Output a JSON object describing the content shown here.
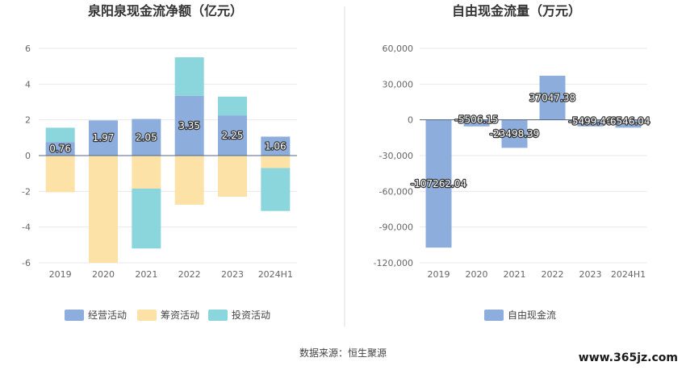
{
  "source_text": "数据来源：恒生聚源",
  "watermark": "www.365jz.com",
  "colors": {
    "operating": "#8daedc",
    "financing": "#fde2a8",
    "investing": "#8ad6dc",
    "free_cash_flow": "#8daedc",
    "grid": "#e8e8e8",
    "divider": "#dddddd"
  },
  "chart_data": [
    {
      "type": "bar",
      "stacked": true,
      "title": "泉阳泉现金流净额（亿元）",
      "categories": [
        "2019",
        "2020",
        "2021",
        "2022",
        "2023",
        "2024H1"
      ],
      "ylim": [
        -6,
        6
      ],
      "yticks": [
        6,
        4,
        2,
        0,
        -2,
        -4,
        -6
      ],
      "ytick_labels": [
        "6",
        "4",
        "2",
        "0",
        "-2",
        "-4",
        "-6"
      ],
      "grid": true,
      "legend_position": "bottom",
      "series": [
        {
          "name": "经营活动",
          "color_key": "operating",
          "values": [
            0.76,
            1.97,
            2.05,
            3.35,
            2.25,
            1.06
          ]
        },
        {
          "name": "筹资活动",
          "color_key": "financing",
          "values": [
            -2.05,
            -6.0,
            -1.85,
            -2.75,
            -2.3,
            -0.7
          ]
        },
        {
          "name": "投资活动",
          "color_key": "investing",
          "values": [
            0.8,
            0.0,
            -3.35,
            2.15,
            1.05,
            -2.4
          ]
        }
      ],
      "data_labels": [
        "0.76",
        "1.97",
        "2.05",
        "3.35",
        "2.25",
        "1.06"
      ]
    },
    {
      "type": "bar",
      "title": "自由现金流量（万元）",
      "categories": [
        "2019",
        "2020",
        "2021",
        "2022",
        "2023",
        "2024H1"
      ],
      "ylim": [
        -120000,
        60000
      ],
      "yticks": [
        60000,
        30000,
        0,
        -30000,
        -60000,
        -90000,
        -120000
      ],
      "ytick_labels": [
        "60,000",
        "30,000",
        "0",
        "-30,000",
        "-60,000",
        "-90,000",
        "-120,000"
      ],
      "grid": true,
      "legend_position": "bottom",
      "series": [
        {
          "name": "自由现金流",
          "color_key": "free_cash_flow",
          "values": [
            -107262.04,
            -5506.15,
            -23498.39,
            37047.38,
            -5499.46,
            -6546.04
          ]
        }
      ],
      "data_labels": [
        "-107262.04",
        "-5506.15",
        "-23498.39",
        "37047.38",
        "-5499.46",
        "-6546.04"
      ]
    }
  ]
}
